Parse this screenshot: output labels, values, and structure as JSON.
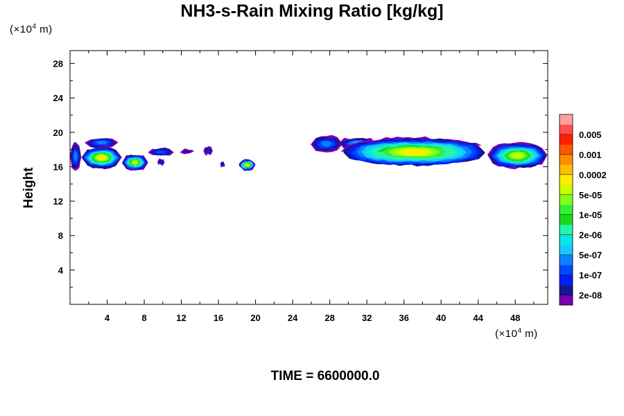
{
  "chart_data": {
    "type": "heatmap",
    "title": "NH3-s-Rain Mixing Ratio [kg/kg]",
    "xlabel": "",
    "ylabel": "Height",
    "x_unit_prefix": "(×10",
    "x_unit_exp": "4",
    "x_unit_suffix": " m)",
    "y_unit_prefix": "(×10",
    "y_unit_exp": "4",
    "y_unit_suffix": " m)",
    "xlim": [
      0,
      51.5
    ],
    "ylim": [
      0,
      29.5
    ],
    "x_ticks": [
      4,
      8,
      12,
      16,
      20,
      24,
      28,
      32,
      36,
      40,
      44,
      48
    ],
    "y_ticks": [
      4,
      8,
      12,
      16,
      20,
      24,
      28
    ],
    "time_label": "TIME = ",
    "time_value": "6600000.0",
    "colorbar": {
      "colors": [
        "#7a00b4",
        "#161691",
        "#0020f5",
        "#0048ff",
        "#0f80ff",
        "#17c8ff",
        "#08e6e6",
        "#26f5a8",
        "#1ad91a",
        "#35ee32",
        "#80ff18",
        "#c5ff00",
        "#ffeb00",
        "#ffbd00",
        "#ff8c00",
        "#ff5600",
        "#ff2000",
        "#ff5050",
        "#ffa0a0"
      ],
      "labels": [
        "2e-08",
        "1e-07",
        "5e-07",
        "2e-06",
        "1e-05",
        "5e-05",
        "0.0002",
        "0.001",
        "0.005"
      ]
    },
    "clouds": [
      {
        "x0": 0,
        "x1": 1.2,
        "y0": 15.6,
        "y1": 18.8,
        "level": 4,
        "peak": 0.06
      },
      {
        "x0": 1.2,
        "x1": 5.6,
        "y0": 15.8,
        "y1": 18.3,
        "level": 12,
        "peak": 0.02
      },
      {
        "x0": 1.6,
        "x1": 5.2,
        "y0": 18.2,
        "y1": 19.4,
        "level": 4,
        "peak": 0.1
      },
      {
        "x0": 5.6,
        "x1": 8.4,
        "y0": 15.6,
        "y1": 17.4,
        "level": 11,
        "peak": 0.08
      },
      {
        "x0": 8.4,
        "x1": 11.2,
        "y0": 17.2,
        "y1": 18.2,
        "level": 3,
        "peak": 0.1
      },
      {
        "x0": 9.4,
        "x1": 10.2,
        "y0": 16.2,
        "y1": 16.9,
        "level": 2,
        "peak": 0.1
      },
      {
        "x0": 11.8,
        "x1": 13.4,
        "y0": 17.5,
        "y1": 18.0,
        "level": 1,
        "peak": 0.1
      },
      {
        "x0": 14.4,
        "x1": 15.4,
        "y0": 17.4,
        "y1": 18.3,
        "level": 2,
        "peak": 0.1
      },
      {
        "x0": 16.2,
        "x1": 16.7,
        "y0": 15.9,
        "y1": 16.6,
        "level": 2,
        "peak": 0.1
      },
      {
        "x0": 18.2,
        "x1": 20.0,
        "y0": 15.6,
        "y1": 16.8,
        "level": 12,
        "peak": 0.1
      },
      {
        "x0": 25.9,
        "x1": 29.4,
        "y0": 17.7,
        "y1": 19.6,
        "level": 4,
        "peak": 0.1
      },
      {
        "x0": 29.0,
        "x1": 33.0,
        "y0": 18.0,
        "y1": 19.4,
        "level": 5,
        "peak": 0.1
      },
      {
        "x0": 29.2,
        "x1": 45.0,
        "y0": 16.0,
        "y1": 19.4,
        "level": 12,
        "peak": 0.06
      },
      {
        "x0": 45.0,
        "x1": 51.5,
        "y0": 15.8,
        "y1": 18.8,
        "level": 11,
        "peak": 0.06
      }
    ]
  }
}
